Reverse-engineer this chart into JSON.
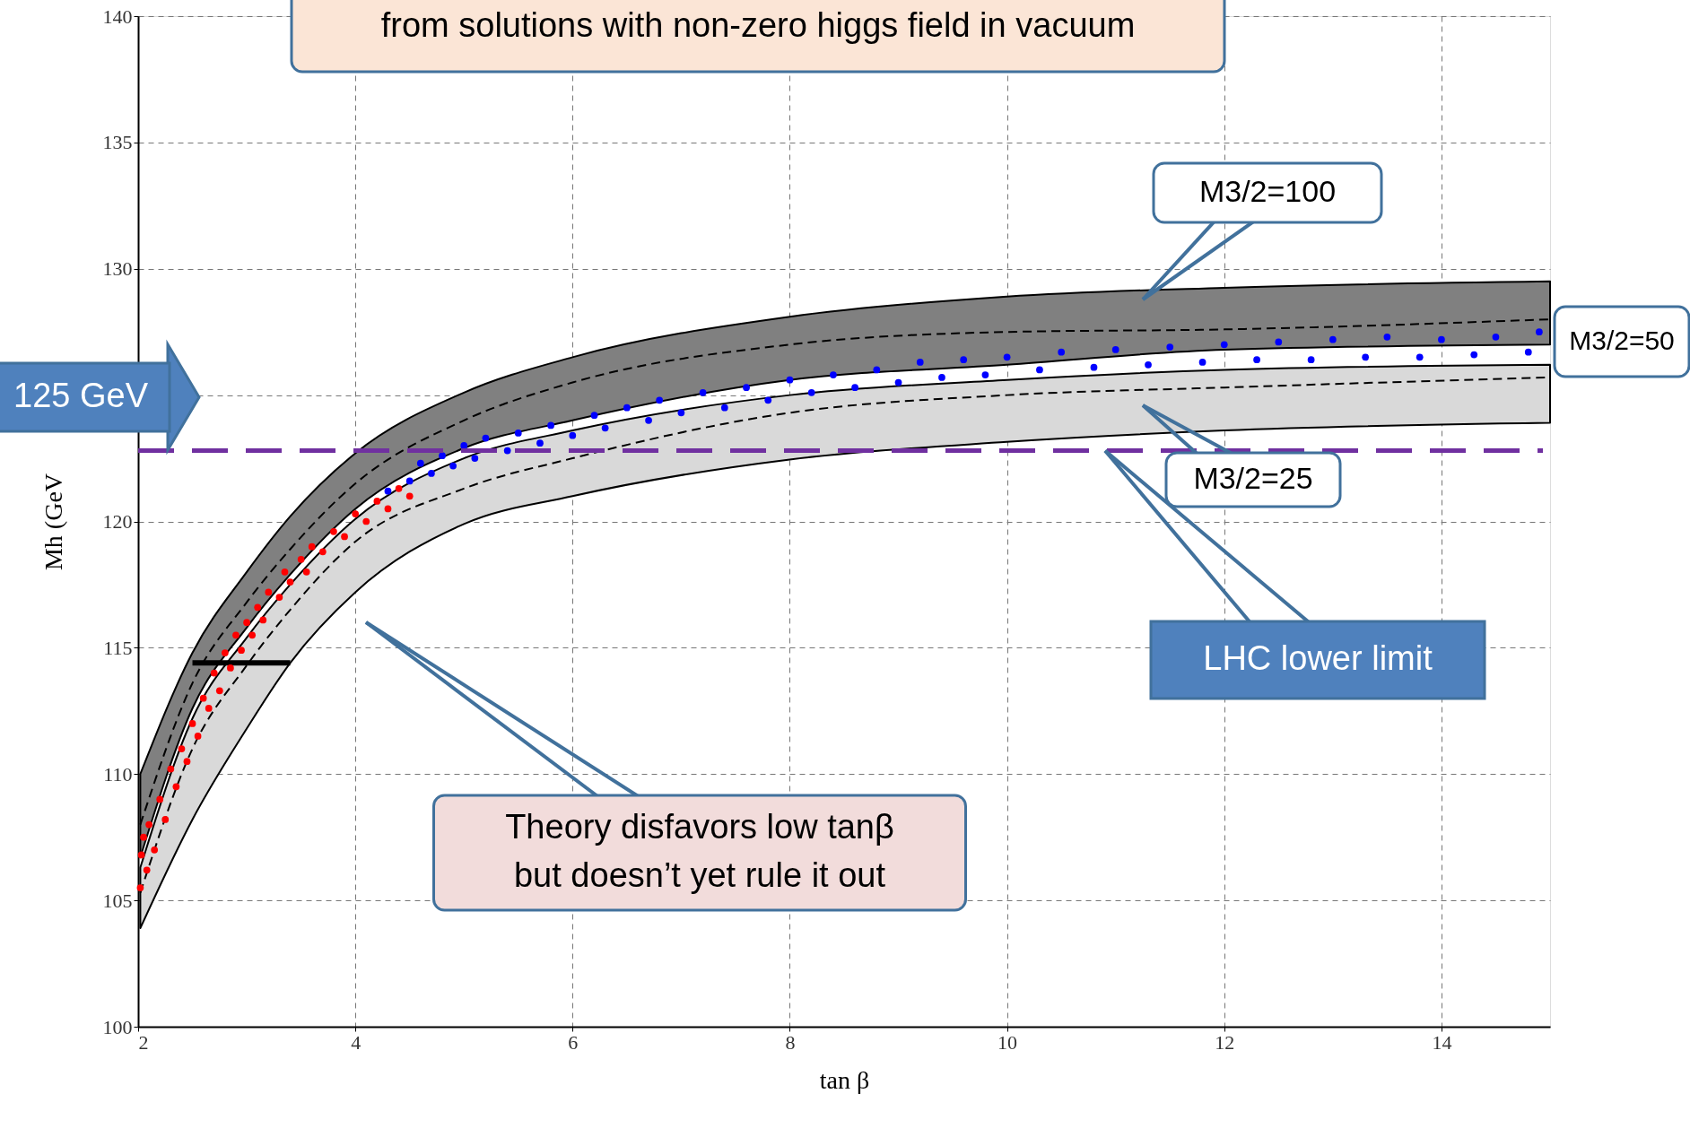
{
  "chart_data": {
    "type": "scatter",
    "xlabel": "tan β",
    "ylabel": "Mh   (GeV",
    "xlim": [
      2,
      15
    ],
    "ylim": [
      100,
      140
    ],
    "xticks": [
      2,
      4,
      6,
      8,
      10,
      12,
      14
    ],
    "yticks": [
      100,
      105,
      110,
      115,
      120,
      {
        "value": 125,
        "label": null
      },
      130,
      135,
      140
    ],
    "grid": true,
    "series": [
      {
        "type": "line",
        "color": "#000000",
        "line_style": "dashed",
        "x": [
          2.02,
          2.5,
          3.0,
          3.4,
          4,
          5,
          6,
          8,
          10,
          12,
          15
        ],
        "values": [
          108.0,
          113.6,
          116.8,
          118.9,
          121.5,
          124.0,
          125.5,
          127.0,
          127.5,
          127.6,
          128.0
        ],
        "lower": [
          106.7,
          112.6,
          115.8,
          117.9,
          120.5,
          122.9,
          124.0,
          125.6,
          126.2,
          126.8,
          127.0
        ],
        "upper": [
          110.0,
          114.8,
          118.0,
          120.2,
          122.7,
          125.1,
          126.5,
          128.1,
          128.9,
          129.25,
          129.5
        ]
      },
      {
        "type": "line",
        "color": "#000000",
        "line_style": "dashed",
        "x": [
          2.02,
          2.5,
          3.0,
          3.4,
          4,
          5,
          6,
          8,
          10,
          12,
          15
        ],
        "values": [
          105.3,
          111.0,
          114.3,
          116.5,
          119.2,
          121.3,
          122.5,
          124.3,
          125.0,
          125.3,
          125.7
        ],
        "lower": [
          103.9,
          108.2,
          111.8,
          114.4,
          117.2,
          119.9,
          121.0,
          122.45,
          123.15,
          123.6,
          123.9
        ],
        "upper": [
          106.3,
          112.2,
          115.4,
          117.5,
          120.1,
          122.5,
          123.6,
          125.0,
          125.6,
          126.0,
          126.2
        ]
      },
      {
        "type": "line",
        "color": "#000000",
        "line_style": "solid",
        "x": [
          2.5,
          3.4
        ],
        "values": [
          114.4,
          114.4
        ]
      },
      {
        "color": "#ff0000",
        "marker": "circle",
        "x": [
          2.02,
          2.03,
          2.05,
          2.08,
          2.1,
          2.15,
          2.2,
          2.25,
          2.3,
          2.35,
          2.4,
          2.45,
          2.5,
          2.55,
          2.6,
          2.65,
          2.7,
          2.75,
          2.8,
          2.85,
          2.9,
          2.95,
          3.0,
          3.05,
          3.1,
          3.15,
          3.2,
          3.3,
          3.35,
          3.4,
          3.5,
          3.55,
          3.6,
          3.7,
          3.8,
          3.9,
          4.0,
          4.1,
          4.2,
          4.3,
          4.4,
          4.5
        ],
        "values": [
          105.5,
          106.8,
          107.5,
          106.2,
          108.0,
          107.0,
          109.0,
          108.2,
          110.2,
          109.5,
          111.0,
          110.5,
          112.0,
          111.5,
          113.0,
          112.6,
          114.0,
          113.3,
          114.8,
          114.2,
          115.5,
          114.9,
          116.0,
          115.5,
          116.6,
          116.1,
          117.2,
          117.0,
          118.0,
          117.6,
          118.5,
          118.0,
          119.0,
          118.8,
          119.6,
          119.4,
          120.3,
          120.0,
          120.8,
          120.5,
          121.3,
          121.0
        ]
      },
      {
        "color": "#0000ff",
        "marker": "circle",
        "x": [
          4.3,
          4.5,
          4.6,
          4.7,
          4.8,
          4.9,
          5.0,
          5.1,
          5.2,
          5.4,
          5.5,
          5.7,
          5.8,
          6.0,
          6.2,
          6.3,
          6.5,
          6.7,
          6.8,
          7.0,
          7.2,
          7.4,
          7.6,
          7.8,
          8.0,
          8.2,
          8.4,
          8.6,
          8.8,
          9.0,
          9.2,
          9.4,
          9.6,
          9.8,
          10.0,
          10.3,
          10.5,
          10.8,
          11.0,
          11.3,
          11.5,
          11.8,
          12.0,
          12.3,
          12.5,
          12.8,
          13.0,
          13.3,
          13.5,
          13.8,
          14.0,
          14.3,
          14.5,
          14.8,
          14.9
        ],
        "values": [
          121.2,
          121.6,
          122.3,
          121.9,
          122.6,
          122.2,
          123.0,
          122.5,
          123.3,
          122.8,
          123.5,
          123.1,
          123.8,
          123.4,
          124.2,
          123.7,
          124.5,
          124.0,
          124.8,
          124.3,
          125.1,
          124.5,
          125.3,
          124.8,
          125.6,
          125.1,
          125.8,
          125.3,
          126.0,
          125.5,
          126.3,
          125.7,
          126.4,
          125.8,
          126.5,
          126.0,
          126.7,
          126.1,
          126.8,
          126.2,
          126.9,
          126.3,
          127.0,
          126.4,
          127.1,
          126.4,
          127.2,
          126.5,
          127.3,
          126.5,
          127.2,
          126.6,
          127.3,
          126.7,
          127.5
        ]
      }
    ],
    "ref_lines": [
      {
        "axis": "y",
        "value": 122.8,
        "label": "LHC lower limit",
        "color": "#7030a0",
        "line_style": "dashed"
      }
    ],
    "annotations": [
      "from solutions with non-zero higgs field in vacuum",
      "M3/2=100",
      "M3/2=50",
      "M3/2=25",
      "125 GeV",
      "Theory disfavors low tanβ\nbut doesn’t yet rule it out"
    ]
  }
}
